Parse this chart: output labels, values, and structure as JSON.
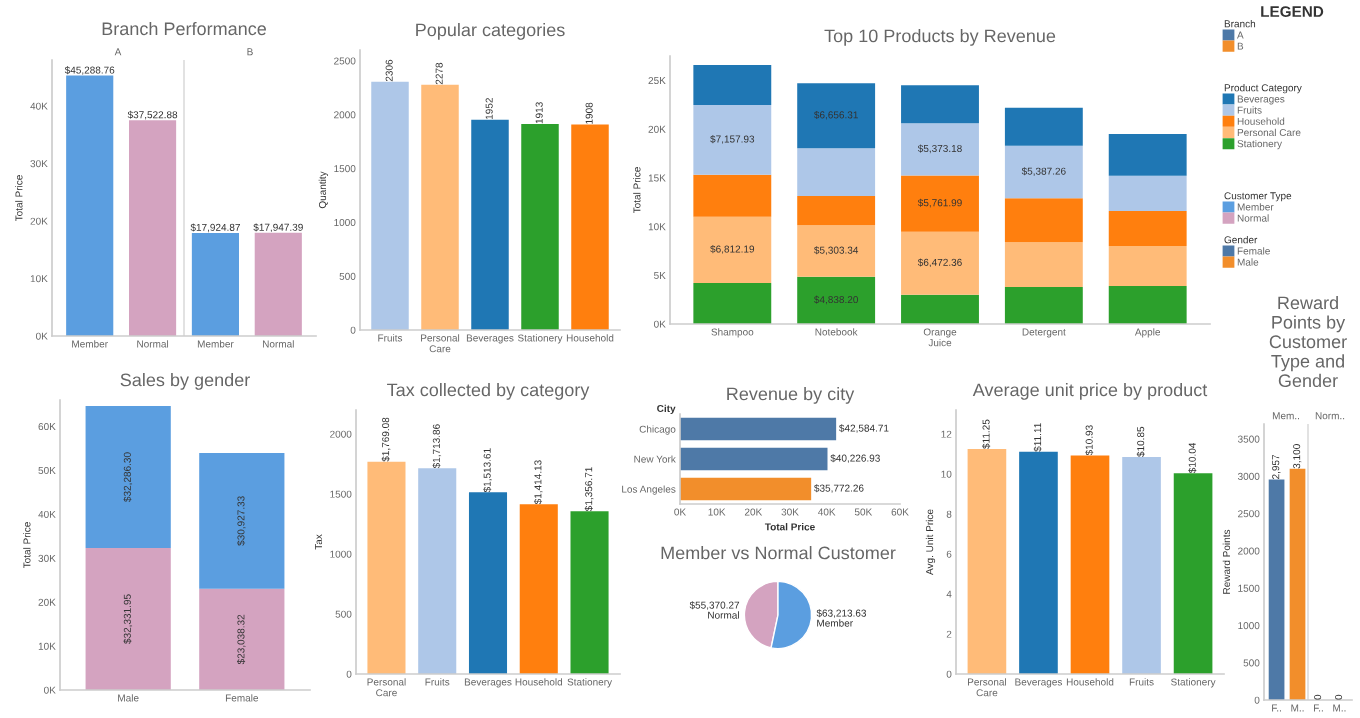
{
  "chart_data": [
    {
      "type": "bar",
      "title": "Branch Performance",
      "ylabel": "Total Price",
      "categories": [
        "Member",
        "Normal",
        "Member",
        "Normal"
      ],
      "annotations": [
        "A",
        "B"
      ],
      "values": [
        45288.76,
        37522.88,
        17924.87,
        17947.39
      ],
      "colors": [
        "#5b9ee0",
        "#d4a3c0",
        "#5b9ee0",
        "#d4a3c0"
      ],
      "value_labels": [
        "$45,288.76",
        "$37,522.88",
        "$17,924.87",
        "$17,947.39"
      ],
      "ylim": [
        0,
        48000
      ],
      "yticks": [
        {
          "value": 0,
          "label": "0K"
        },
        {
          "value": 10000,
          "label": "10K"
        },
        {
          "value": 20000,
          "label": "20K"
        },
        {
          "value": 30000,
          "label": "30K"
        },
        {
          "value": 40000,
          "label": "40K"
        }
      ]
    },
    {
      "type": "bar",
      "title": "Popular categories",
      "ylabel": "Quantity",
      "categories": [
        "Fruits",
        "Personal Care",
        "Beverages",
        "Stationery",
        "Household"
      ],
      "values": [
        2306,
        2278,
        1952,
        1913,
        1908
      ],
      "colors": [
        "#aec7e8",
        "#ffbb78",
        "#1f77b4",
        "#2ca02c",
        "#ff7f0e"
      ],
      "data_labels": true,
      "ylim": [
        0,
        2600
      ],
      "yticks": [
        0,
        500,
        1000,
        1500,
        2000,
        2500
      ]
    },
    {
      "type": "bar",
      "title": "Top 10 Products by Revenue",
      "ylabel": "Total Price",
      "stacked": true,
      "legend_title": "Product Category",
      "legend": "right",
      "categories": [
        "Shampoo",
        "Notebook",
        "Orange Juice",
        "Detergent",
        "Apple"
      ],
      "series": [
        {
          "name": "Stationery",
          "color": "#2ca02c",
          "values": [
            4200,
            4838.2,
            3000,
            3800,
            3900
          ],
          "value_labels": [
            null,
            "$4,838.20",
            null,
            null,
            null
          ]
        },
        {
          "name": "Personal Care",
          "color": "#ffbb78",
          "values": [
            6812.19,
            5303.34,
            6472.36,
            4600,
            4100
          ],
          "value_labels": [
            "$6,812.19",
            "$5,303.34",
            "$6,472.36",
            null,
            null
          ]
        },
        {
          "name": "Household",
          "color": "#ff7f0e",
          "values": [
            4300,
            3000,
            5761.99,
            4500,
            3600
          ],
          "value_labels": [
            null,
            null,
            "$5,761.99",
            null,
            null
          ]
        },
        {
          "name": "Fruits",
          "color": "#aec7e8",
          "values": [
            7157.93,
            4900,
            5373.18,
            5387.26,
            3600
          ],
          "value_labels": [
            "$7,157.93",
            null,
            "$5,373.18",
            "$5,387.26",
            null
          ]
        },
        {
          "name": "Beverages",
          "color": "#1f77b4",
          "values": [
            4100,
            6656.31,
            3900,
            3900,
            4300
          ],
          "value_labels": [
            null,
            "$6,656.31",
            null,
            null,
            null
          ]
        }
      ],
      "ylim": [
        0,
        27500
      ],
      "yticks": [
        {
          "value": 0,
          "label": "0K"
        },
        {
          "value": 5000,
          "label": "5K"
        },
        {
          "value": 10000,
          "label": "10K"
        },
        {
          "value": 15000,
          "label": "15K"
        },
        {
          "value": 20000,
          "label": "20K"
        },
        {
          "value": 25000,
          "label": "25K"
        }
      ]
    },
    {
      "type": "other",
      "title": "LEGEND",
      "legend_title": "Branch",
      "legend": "top left",
      "series": [
        {
          "name": "A",
          "color": "#4e79a7"
        },
        {
          "name": "B",
          "color": "#f28e2b"
        }
      ]
    },
    {
      "type": "other",
      "legend_title": "Gender",
      "legend": "top left",
      "series": [
        {
          "name": "Female",
          "color": "#4e79a7"
        },
        {
          "name": "Male",
          "color": "#f28e2b"
        }
      ]
    },
    {
      "type": "bar",
      "title": "Sales by gender",
      "ylabel": "Total Price",
      "stacked": true,
      "legend_title": "Customer Type",
      "legend": "right",
      "categories": [
        "Male",
        "Female"
      ],
      "series": [
        {
          "name": "Normal",
          "color": "#d4a3c0",
          "values": [
            32331.95,
            23038.32
          ],
          "value_labels": [
            "$32,331.95",
            "$23,038.32"
          ]
        },
        {
          "name": "Member",
          "color": "#5b9ee0",
          "values": [
            32286.3,
            30927.33
          ],
          "value_labels": [
            "$32,286.30",
            "$30,927.33"
          ]
        }
      ],
      "ylim": [
        0,
        66000
      ],
      "yticks": [
        {
          "value": 0,
          "label": "0K"
        },
        {
          "value": 10000,
          "label": "10K"
        },
        {
          "value": 20000,
          "label": "20K"
        },
        {
          "value": 30000,
          "label": "30K"
        },
        {
          "value": 40000,
          "label": "40K"
        },
        {
          "value": 50000,
          "label": "50K"
        },
        {
          "value": 60000,
          "label": "60K"
        }
      ]
    },
    {
      "type": "bar",
      "title": "Tax collected by category",
      "ylabel": "Tax",
      "categories": [
        "Personal Care",
        "Fruits",
        "Beverages",
        "Household",
        "Stationery"
      ],
      "values": [
        1769.08,
        1713.86,
        1513.61,
        1414.13,
        1356.71
      ],
      "colors": [
        "#ffbb78",
        "#aec7e8",
        "#1f77b4",
        "#ff7f0e",
        "#2ca02c"
      ],
      "value_labels": [
        "$1,769.08",
        "$1,713.86",
        "$1,513.61",
        "$1,414.13",
        "$1,356.71"
      ],
      "ylim": [
        0,
        2200
      ],
      "yticks": [
        0,
        500,
        1000,
        1500,
        2000
      ]
    },
    {
      "type": "bar",
      "title": "Revenue by city",
      "orientation": "horizontal",
      "ylabel": "City",
      "xlabel": "Total Price",
      "categories": [
        "Chicago",
        "New York",
        "Los Angeles"
      ],
      "values": [
        42584.71,
        40226.93,
        35772.26
      ],
      "colors": [
        "#4e79a7",
        "#4e79a7",
        "#f28e2b"
      ],
      "value_labels": [
        "$42,584.71",
        "$40,226.93",
        "$35,772.26"
      ],
      "xlim": [
        0,
        60000
      ],
      "xticks": [
        {
          "value": 0,
          "label": "0K"
        },
        {
          "value": 10000,
          "label": "10K"
        },
        {
          "value": 20000,
          "label": "20K"
        },
        {
          "value": 30000,
          "label": "30K"
        },
        {
          "value": 40000,
          "label": "40K"
        },
        {
          "value": 50000,
          "label": "50K"
        },
        {
          "value": 60000,
          "label": "60K"
        }
      ]
    },
    {
      "type": "pie",
      "title": "Member vs Normal Customer",
      "categories": [
        "Normal",
        "Member"
      ],
      "values": [
        55370.27,
        63213.63
      ],
      "colors": [
        "#d4a3c0",
        "#5b9ee0"
      ],
      "value_labels": [
        "$55,370.27",
        "$63,213.63"
      ]
    },
    {
      "type": "bar",
      "title": "Average unit price by product",
      "ylabel": "Avg. Unit Price",
      "categories": [
        "Personal Care",
        "Beverages",
        "Household",
        "Fruits",
        "Stationery"
      ],
      "values": [
        11.25,
        11.11,
        10.93,
        10.85,
        10.04
      ],
      "colors": [
        "#ffbb78",
        "#1f77b4",
        "#ff7f0e",
        "#aec7e8",
        "#2ca02c"
      ],
      "value_labels": [
        "$11.25",
        "$11.11",
        "$10.93",
        "$10.85",
        "$10.04"
      ],
      "ylim": [
        0,
        13.2
      ],
      "yticks": [
        0,
        2,
        4,
        6,
        8,
        10,
        12
      ]
    },
    {
      "type": "bar",
      "title": "Reward Points by Customer Type and Gender",
      "ylabel": "Reward Points",
      "categories": [
        "F..",
        "M..",
        "F..",
        "M.."
      ],
      "annotations": [
        "Mem..",
        "Norm.."
      ],
      "values": [
        2957,
        3100,
        0,
        0
      ],
      "colors": [
        "#4e79a7",
        "#f28e2b",
        "#4e79a7",
        "#f28e2b"
      ],
      "value_labels": [
        "2,957",
        "3,100",
        "0",
        "0"
      ],
      "ylim": [
        0,
        3700
      ],
      "yticks": [
        0,
        500,
        1000,
        1500,
        2000,
        2500,
        3000,
        3500
      ]
    }
  ]
}
